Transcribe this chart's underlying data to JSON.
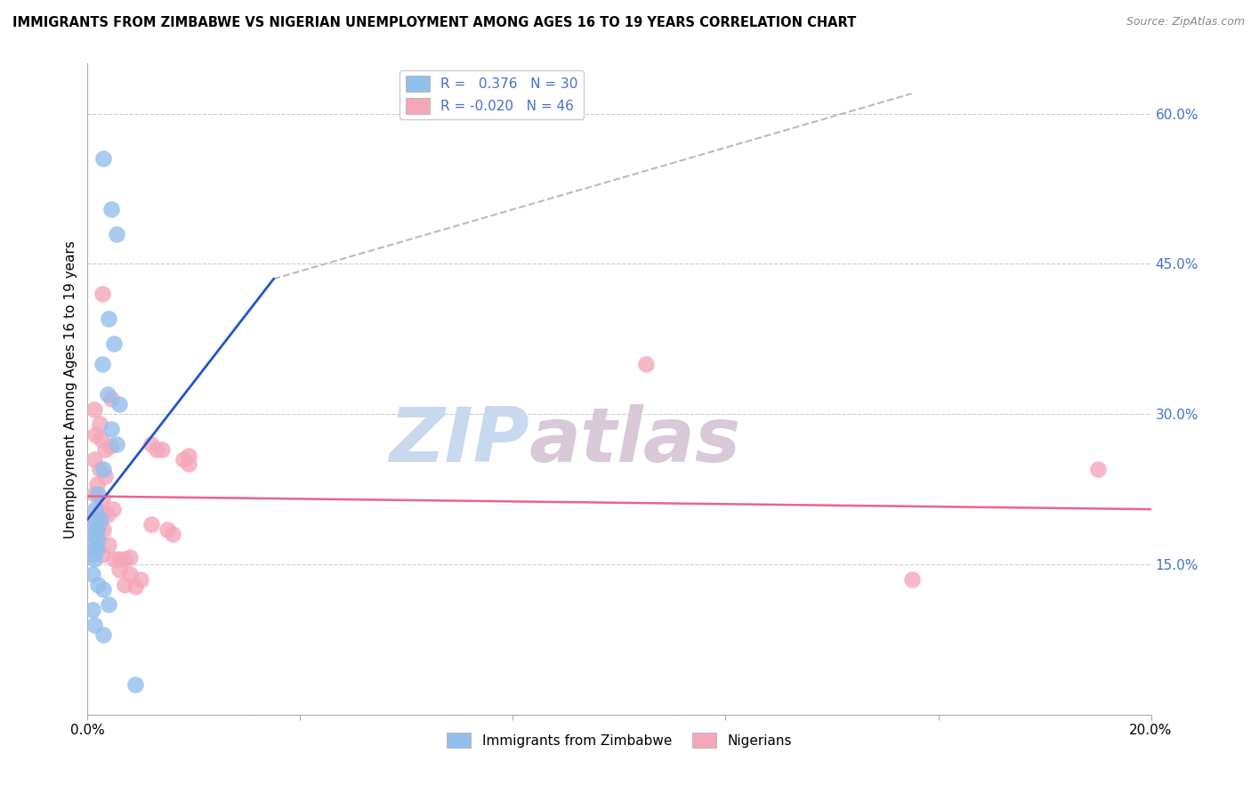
{
  "title": "IMMIGRANTS FROM ZIMBABWE VS NIGERIAN UNEMPLOYMENT AMONG AGES 16 TO 19 YEARS CORRELATION CHART",
  "source": "Source: ZipAtlas.com",
  "ylabel": "Unemployment Among Ages 16 to 19 years",
  "xlim": [
    0.0,
    0.2
  ],
  "ylim": [
    0.0,
    0.65
  ],
  "ytick_positions": [
    0.0,
    0.15,
    0.3,
    0.45,
    0.6
  ],
  "ytick_labels": [
    "",
    "15.0%",
    "30.0%",
    "45.0%",
    "60.0%"
  ],
  "xtick_positions": [
    0.0,
    0.04,
    0.08,
    0.12,
    0.16,
    0.2
  ],
  "xtick_labels": [
    "0.0%",
    "",
    "",
    "",
    "",
    "20.0%"
  ],
  "color_zimbabwe": "#92BFEC",
  "color_nigeria": "#F4A7B9",
  "color_line_zimbabwe": "#2255CC",
  "color_line_nigeria": "#E8648C",
  "color_trend_grey": "#BBBBBB",
  "watermark_zip": "ZIP",
  "watermark_atlas": "atlas",
  "zimbabwe_r": 0.376,
  "zimbabwe_n": 30,
  "nigeria_r": -0.02,
  "nigeria_n": 46,
  "zimbabwe_points": [
    [
      0.003,
      0.555
    ],
    [
      0.0045,
      0.505
    ],
    [
      0.0055,
      0.48
    ],
    [
      0.004,
      0.395
    ],
    [
      0.005,
      0.37
    ],
    [
      0.0028,
      0.35
    ],
    [
      0.0038,
      0.32
    ],
    [
      0.006,
      0.31
    ],
    [
      0.0045,
      0.285
    ],
    [
      0.0055,
      0.27
    ],
    [
      0.003,
      0.245
    ],
    [
      0.002,
      0.22
    ],
    [
      0.0015,
      0.205
    ],
    [
      0.0025,
      0.195
    ],
    [
      0.0012,
      0.19
    ],
    [
      0.0018,
      0.185
    ],
    [
      0.001,
      0.18
    ],
    [
      0.002,
      0.175
    ],
    [
      0.0012,
      0.17
    ],
    [
      0.0018,
      0.165
    ],
    [
      0.001,
      0.16
    ],
    [
      0.0012,
      0.155
    ],
    [
      0.001,
      0.14
    ],
    [
      0.002,
      0.13
    ],
    [
      0.003,
      0.125
    ],
    [
      0.004,
      0.11
    ],
    [
      0.001,
      0.105
    ],
    [
      0.0012,
      0.09
    ],
    [
      0.003,
      0.08
    ],
    [
      0.009,
      0.03
    ]
  ],
  "nigeria_points": [
    [
      0.0028,
      0.42
    ],
    [
      0.0045,
      0.315
    ],
    [
      0.0012,
      0.305
    ],
    [
      0.0022,
      0.29
    ],
    [
      0.0015,
      0.28
    ],
    [
      0.0025,
      0.275
    ],
    [
      0.0032,
      0.265
    ],
    [
      0.0042,
      0.268
    ],
    [
      0.0012,
      0.255
    ],
    [
      0.0022,
      0.245
    ],
    [
      0.0032,
      0.238
    ],
    [
      0.0018,
      0.23
    ],
    [
      0.0012,
      0.22
    ],
    [
      0.0028,
      0.215
    ],
    [
      0.0048,
      0.205
    ],
    [
      0.0022,
      0.203
    ],
    [
      0.0038,
      0.2
    ],
    [
      0.0012,
      0.195
    ],
    [
      0.0022,
      0.19
    ],
    [
      0.003,
      0.185
    ],
    [
      0.0012,
      0.18
    ],
    [
      0.002,
      0.175
    ],
    [
      0.004,
      0.17
    ],
    [
      0.0012,
      0.165
    ],
    [
      0.0028,
      0.16
    ],
    [
      0.005,
      0.155
    ],
    [
      0.006,
      0.155
    ],
    [
      0.007,
      0.155
    ],
    [
      0.008,
      0.157
    ],
    [
      0.006,
      0.145
    ],
    [
      0.008,
      0.14
    ],
    [
      0.01,
      0.135
    ],
    [
      0.007,
      0.13
    ],
    [
      0.009,
      0.128
    ],
    [
      0.012,
      0.27
    ],
    [
      0.013,
      0.265
    ],
    [
      0.014,
      0.265
    ],
    [
      0.018,
      0.255
    ],
    [
      0.019,
      0.25
    ],
    [
      0.012,
      0.19
    ],
    [
      0.015,
      0.185
    ],
    [
      0.016,
      0.18
    ],
    [
      0.019,
      0.258
    ],
    [
      0.105,
      0.35
    ],
    [
      0.155,
      0.135
    ],
    [
      0.19,
      0.245
    ]
  ],
  "zim_line_x0": 0.0,
  "zim_line_y0": 0.195,
  "zim_line_x1": 0.035,
  "zim_line_y1": 0.435,
  "grey_line_x0": 0.035,
  "grey_line_y0": 0.435,
  "grey_line_x1": 0.155,
  "grey_line_y1": 0.62,
  "nig_line_x0": 0.0,
  "nig_line_y0": 0.218,
  "nig_line_x1": 0.2,
  "nig_line_y1": 0.205
}
